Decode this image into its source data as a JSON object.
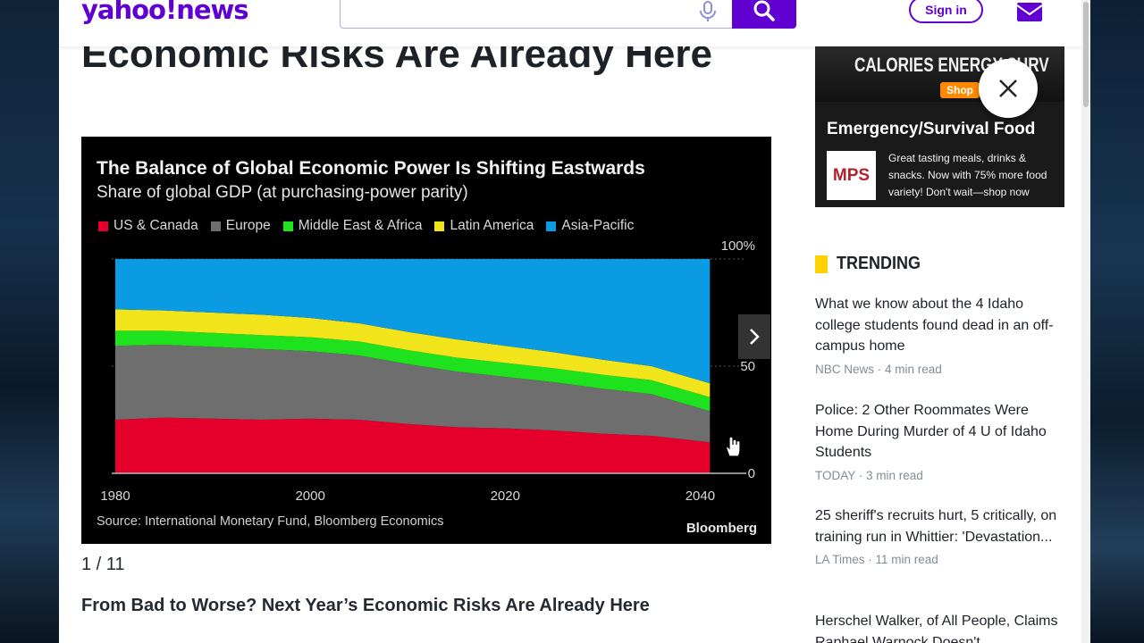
{
  "header": {
    "logo_text": "yahoo!news",
    "search_placeholder": "",
    "signin_label": "Sign in"
  },
  "article": {
    "headline_top": "Economic Risks Are Already Here",
    "slide_counter": "1 / 11",
    "caption": "From Bad to Worse? Next Year’s Economic Risks Are Already Here"
  },
  "chart": {
    "title": "The Balance of Global Economic Power Is Shifting Eastwards",
    "subtitle": "Share of global GDP (at purchasing-power parity)",
    "source": "Source: International Monetary Fund, Bloomberg Economics",
    "brand": "Bloomberg",
    "legend": [
      {
        "label": "US & Canada",
        "color": "#e4002b"
      },
      {
        "label": "Europe",
        "color": "#6e6e6e"
      },
      {
        "label": "Middle East & Africa",
        "color": "#1ee21e"
      },
      {
        "label": "Latin America",
        "color": "#f2e41a"
      },
      {
        "label": "Asia-Pacific",
        "color": "#0a9be2"
      }
    ]
  },
  "chart_data": {
    "type": "area",
    "title": "The Balance of Global Economic Power Is Shifting Eastwards",
    "subtitle": "Share of global GDP (at purchasing-power parity)",
    "xlabel": "",
    "ylabel": "",
    "x": [
      1980,
      1985,
      1990,
      1995,
      2000,
      2005,
      2010,
      2015,
      2020,
      2025,
      2030,
      2035,
      2041
    ],
    "xticks": [
      "1980",
      "2000",
      "2020",
      "2040"
    ],
    "yticks": [
      "0",
      "50",
      "100%"
    ],
    "ylim": [
      0,
      100
    ],
    "stacked": true,
    "series": [
      {
        "name": "US & Canada",
        "values": [
          25,
          26,
          25.5,
          25,
          25.5,
          25,
          23,
          21.5,
          21,
          20,
          18.5,
          17.5,
          14.5
        ]
      },
      {
        "name": "Europe",
        "values": [
          34.5,
          34,
          33.5,
          33,
          31.5,
          30,
          28,
          26,
          24,
          22.5,
          21,
          19.5,
          14.5
        ]
      },
      {
        "name": "Middle East & Africa",
        "values": [
          7,
          6.5,
          6.5,
          6.5,
          6.5,
          6.5,
          6.5,
          6.5,
          6.5,
          6.5,
          6.5,
          6.5,
          6.5
        ]
      },
      {
        "name": "Latin America",
        "values": [
          10,
          9.5,
          9.5,
          9.5,
          9,
          8.5,
          8.5,
          8.5,
          8,
          7.5,
          7,
          6.5,
          6.5
        ]
      },
      {
        "name": "Asia-Pacific",
        "values": [
          23.5,
          24,
          25,
          26,
          27.5,
          30,
          34,
          37.5,
          40.5,
          43.5,
          47,
          50,
          58
        ]
      }
    ]
  },
  "ad": {
    "banner_text": "CALORIES ENERGY SURV",
    "shop_label": "Shop",
    "title": "Emergency/Survival Food",
    "logo_text": "MPS",
    "body": "Great tasting meals, drinks & snacks. Now with 75% more food variety! Don't wait—shop now"
  },
  "trending": {
    "title": "TRENDING",
    "items": [
      {
        "headline": "What we know about the 4 Idaho college students found dead in an off-campus home",
        "source": "NBC News",
        "read": "4 min read"
      },
      {
        "headline": "Police: 2 Other Roommates Were Home During Murder of 4 U of Idaho Students",
        "source": "TODAY",
        "read": "3 min read"
      },
      {
        "headline": "25 sheriff's recruits hurt, 5 critically, on training run in Whittier: 'Devastation...",
        "source": "LA Times",
        "read": "11 min read"
      },
      {
        "headline": "Herschel Walker, of All People, Claims Raphael Warnock Doesn't",
        "source": "",
        "read": ""
      }
    ]
  },
  "colors": {
    "brand": "#6001d2",
    "trending_accent": "#ffd200"
  }
}
